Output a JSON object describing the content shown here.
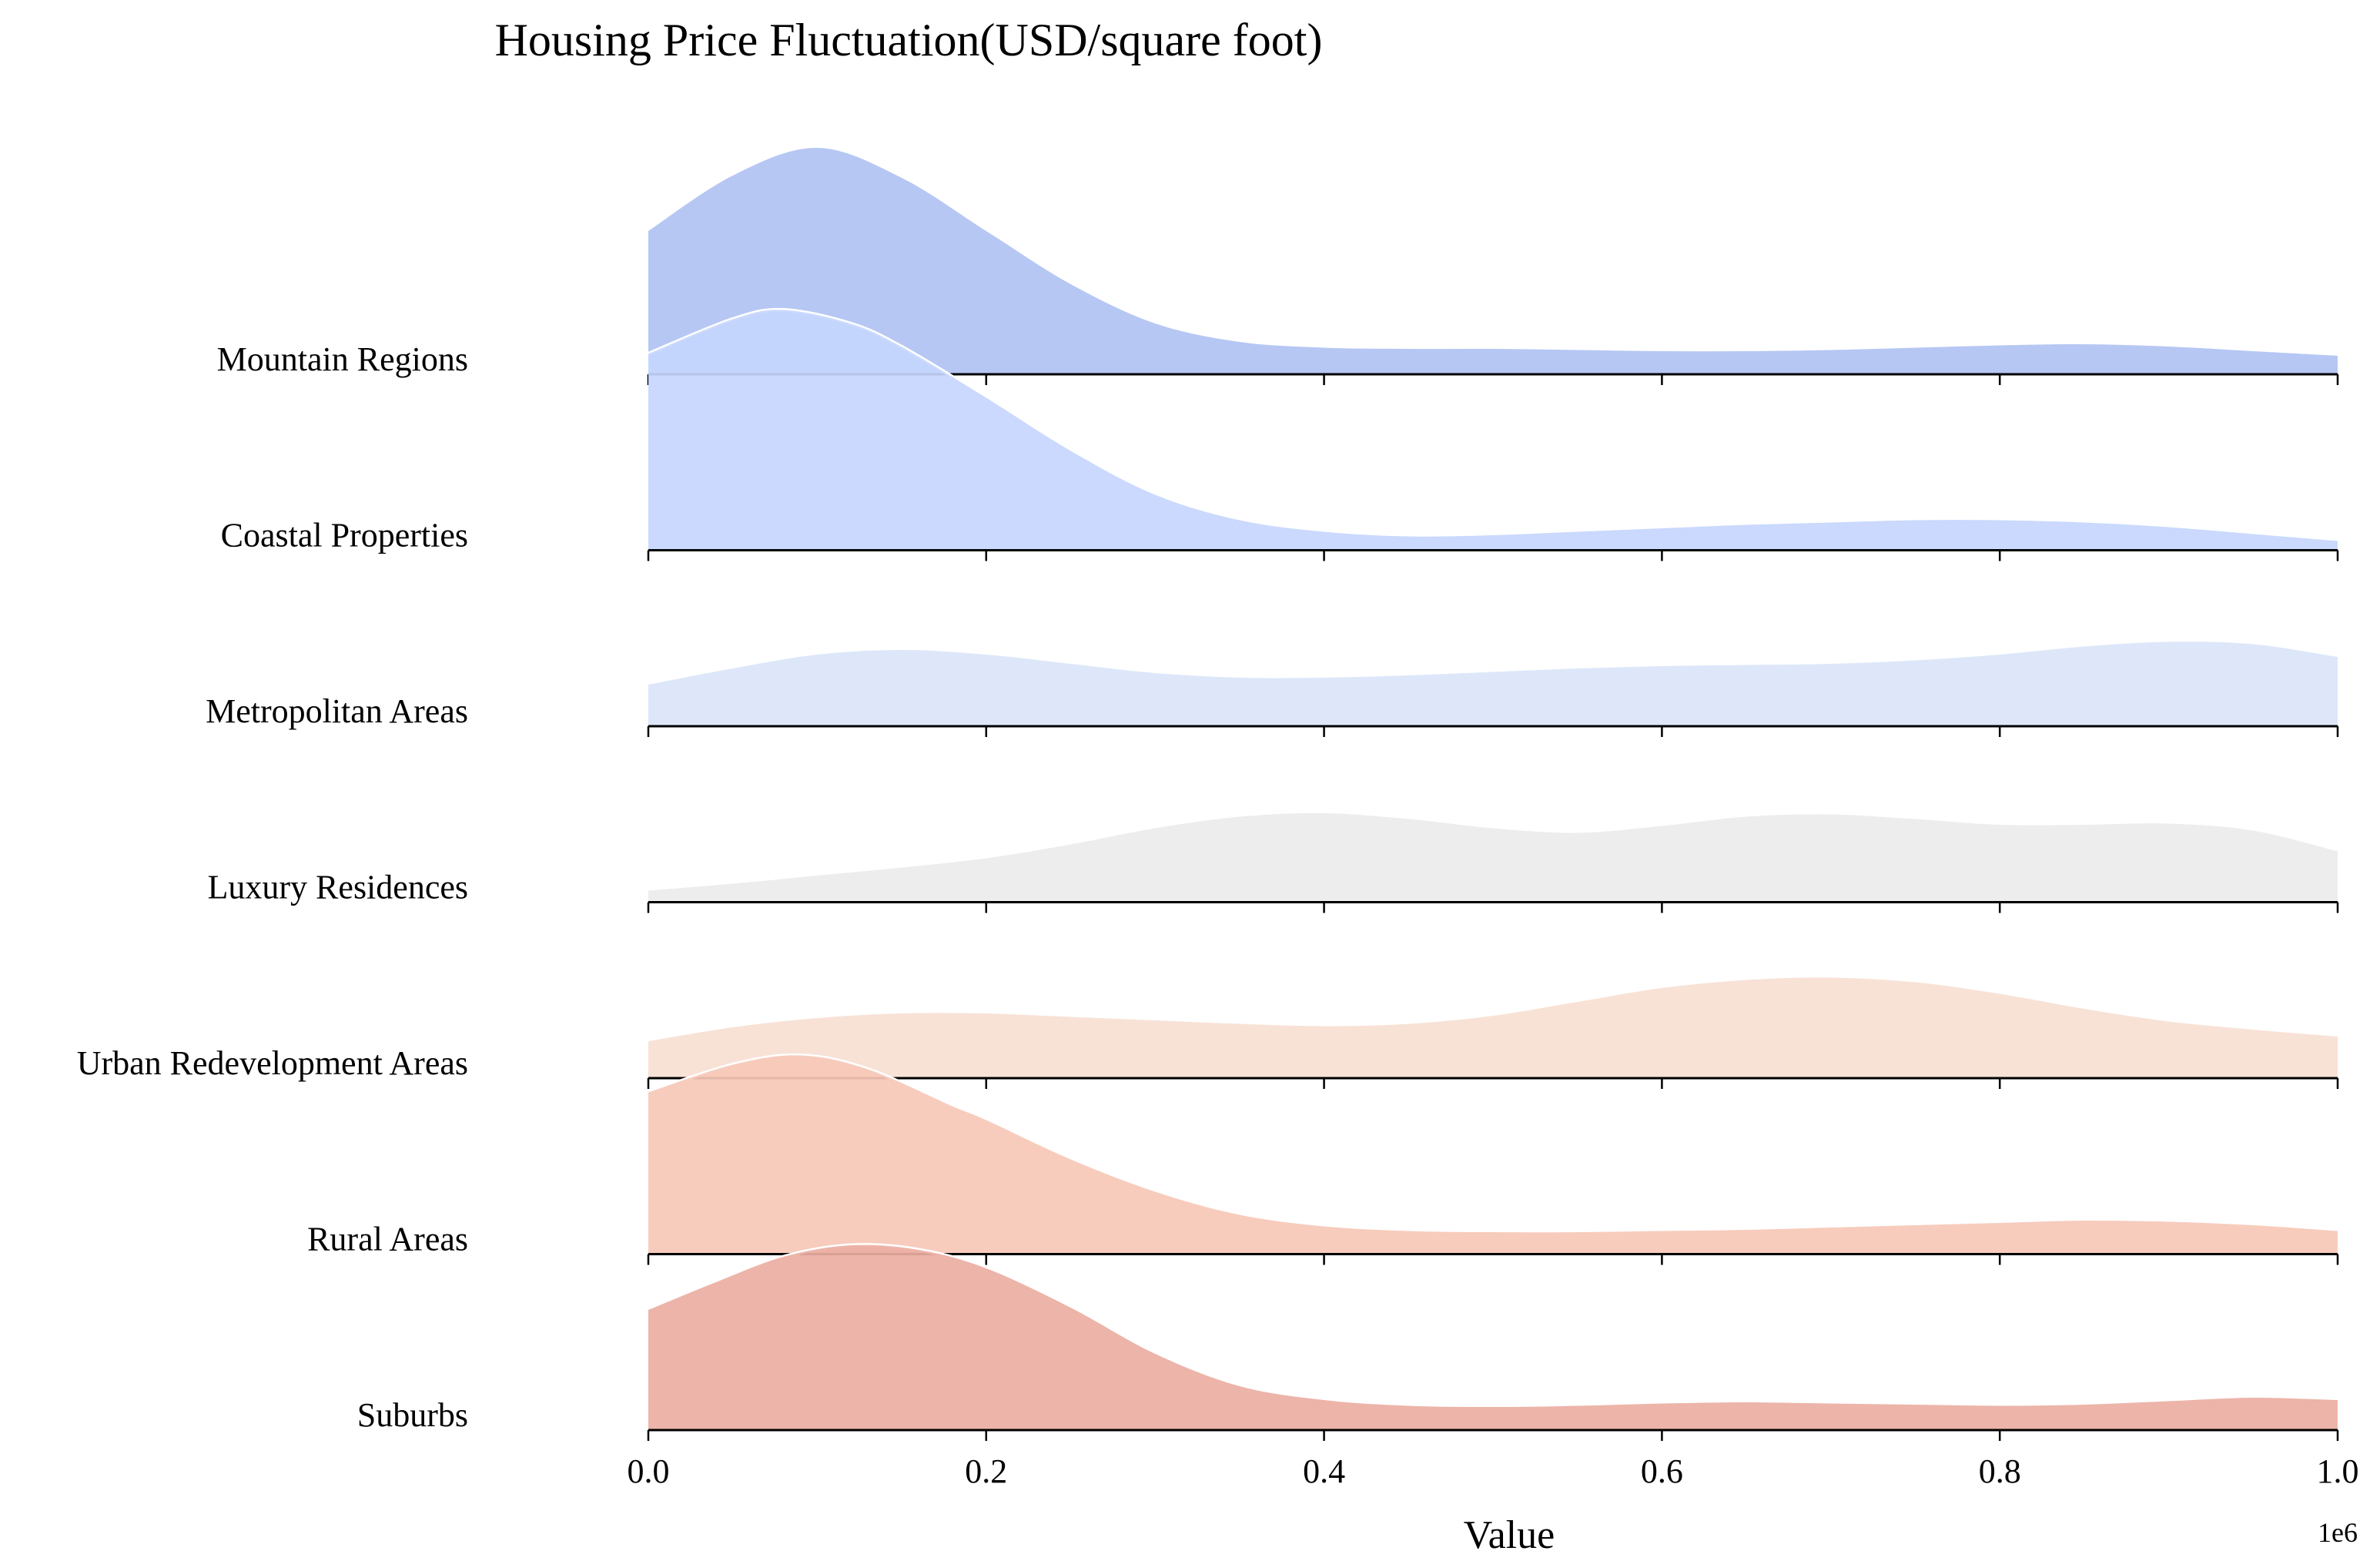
{
  "chart_data": {
    "type": "ridgeline",
    "title": "Housing Price Fluctuation(USD/square foot)",
    "xlabel": "Value",
    "x_offset_label": "1e6",
    "xlim": [
      0,
      1
    ],
    "xticks": [
      0.0,
      0.2,
      0.4,
      0.6,
      0.8,
      1.0
    ],
    "xtick_labels": [
      "0.0",
      "0.2",
      "0.4",
      "0.6",
      "0.8",
      "1.0"
    ],
    "series": [
      {
        "name": "Mountain Regions",
        "color": "#b0c2f3",
        "points": [
          [
            0,
            0.62
          ],
          [
            0.05,
            0.86
          ],
          [
            0.1,
            0.98
          ],
          [
            0.15,
            0.85
          ],
          [
            0.2,
            0.62
          ],
          [
            0.25,
            0.39
          ],
          [
            0.3,
            0.22
          ],
          [
            0.35,
            0.14
          ],
          [
            0.4,
            0.115
          ],
          [
            0.45,
            0.11
          ],
          [
            0.5,
            0.11
          ],
          [
            0.55,
            0.105
          ],
          [
            0.6,
            0.1
          ],
          [
            0.65,
            0.1
          ],
          [
            0.7,
            0.105
          ],
          [
            0.75,
            0.115
          ],
          [
            0.8,
            0.125
          ],
          [
            0.85,
            0.13
          ],
          [
            0.9,
            0.12
          ],
          [
            0.95,
            0.1
          ],
          [
            1.0,
            0.08
          ]
        ]
      },
      {
        "name": "Coastal Properties",
        "color": "#c5d6fd",
        "points": [
          [
            0,
            0.85
          ],
          [
            0.05,
            1.0
          ],
          [
            0.08,
            1.04
          ],
          [
            0.12,
            0.98
          ],
          [
            0.15,
            0.88
          ],
          [
            0.2,
            0.66
          ],
          [
            0.25,
            0.43
          ],
          [
            0.3,
            0.24
          ],
          [
            0.35,
            0.13
          ],
          [
            0.4,
            0.08
          ],
          [
            0.45,
            0.06
          ],
          [
            0.5,
            0.065
          ],
          [
            0.55,
            0.08
          ],
          [
            0.6,
            0.095
          ],
          [
            0.65,
            0.11
          ],
          [
            0.7,
            0.12
          ],
          [
            0.75,
            0.13
          ],
          [
            0.8,
            0.13
          ],
          [
            0.85,
            0.12
          ],
          [
            0.9,
            0.1
          ],
          [
            0.95,
            0.07
          ],
          [
            1.0,
            0.04
          ]
        ]
      },
      {
        "name": "Metropolitan Areas",
        "color": "#dae5f8",
        "points": [
          [
            0,
            0.18
          ],
          [
            0.05,
            0.25
          ],
          [
            0.1,
            0.31
          ],
          [
            0.15,
            0.33
          ],
          [
            0.2,
            0.31
          ],
          [
            0.25,
            0.27
          ],
          [
            0.3,
            0.23
          ],
          [
            0.35,
            0.21
          ],
          [
            0.4,
            0.21
          ],
          [
            0.45,
            0.22
          ],
          [
            0.5,
            0.235
          ],
          [
            0.55,
            0.25
          ],
          [
            0.6,
            0.26
          ],
          [
            0.65,
            0.265
          ],
          [
            0.7,
            0.27
          ],
          [
            0.75,
            0.285
          ],
          [
            0.8,
            0.31
          ],
          [
            0.85,
            0.345
          ],
          [
            0.9,
            0.365
          ],
          [
            0.95,
            0.355
          ],
          [
            1.0,
            0.3
          ]
        ]
      },
      {
        "name": "Luxury Residences",
        "color": "#ebebeb",
        "points": [
          [
            0,
            0.05
          ],
          [
            0.05,
            0.08
          ],
          [
            0.1,
            0.115
          ],
          [
            0.15,
            0.15
          ],
          [
            0.2,
            0.19
          ],
          [
            0.25,
            0.25
          ],
          [
            0.3,
            0.32
          ],
          [
            0.35,
            0.37
          ],
          [
            0.4,
            0.385
          ],
          [
            0.45,
            0.36
          ],
          [
            0.5,
            0.32
          ],
          [
            0.55,
            0.3
          ],
          [
            0.6,
            0.33
          ],
          [
            0.65,
            0.37
          ],
          [
            0.7,
            0.38
          ],
          [
            0.75,
            0.36
          ],
          [
            0.8,
            0.335
          ],
          [
            0.85,
            0.335
          ],
          [
            0.9,
            0.34
          ],
          [
            0.95,
            0.31
          ],
          [
            1.0,
            0.22
          ]
        ]
      },
      {
        "name": "Urban Redevelopment Areas",
        "color": "#f7dfd2",
        "points": [
          [
            0,
            0.16
          ],
          [
            0.05,
            0.22
          ],
          [
            0.1,
            0.26
          ],
          [
            0.15,
            0.28
          ],
          [
            0.2,
            0.28
          ],
          [
            0.25,
            0.265
          ],
          [
            0.3,
            0.25
          ],
          [
            0.35,
            0.235
          ],
          [
            0.4,
            0.225
          ],
          [
            0.45,
            0.235
          ],
          [
            0.5,
            0.27
          ],
          [
            0.55,
            0.33
          ],
          [
            0.6,
            0.39
          ],
          [
            0.65,
            0.425
          ],
          [
            0.7,
            0.435
          ],
          [
            0.75,
            0.415
          ],
          [
            0.8,
            0.365
          ],
          [
            0.85,
            0.3
          ],
          [
            0.9,
            0.245
          ],
          [
            0.95,
            0.21
          ],
          [
            1.0,
            0.18
          ]
        ]
      },
      {
        "name": "Rural Areas",
        "color": "#f6c8b7",
        "points": [
          [
            0,
            0.7
          ],
          [
            0.05,
            0.82
          ],
          [
            0.09,
            0.86
          ],
          [
            0.13,
            0.8
          ],
          [
            0.18,
            0.64
          ],
          [
            0.2,
            0.58
          ],
          [
            0.25,
            0.41
          ],
          [
            0.3,
            0.27
          ],
          [
            0.35,
            0.17
          ],
          [
            0.4,
            0.12
          ],
          [
            0.45,
            0.1
          ],
          [
            0.5,
            0.095
          ],
          [
            0.55,
            0.095
          ],
          [
            0.6,
            0.1
          ],
          [
            0.65,
            0.105
          ],
          [
            0.7,
            0.115
          ],
          [
            0.75,
            0.125
          ],
          [
            0.8,
            0.135
          ],
          [
            0.85,
            0.145
          ],
          [
            0.9,
            0.14
          ],
          [
            0.95,
            0.125
          ],
          [
            1.0,
            0.1
          ]
        ]
      },
      {
        "name": "Suburbs",
        "color": "#ebaea2",
        "points": [
          [
            0,
            0.52
          ],
          [
            0.04,
            0.64
          ],
          [
            0.08,
            0.75
          ],
          [
            0.12,
            0.8
          ],
          [
            0.16,
            0.78
          ],
          [
            0.2,
            0.7
          ],
          [
            0.25,
            0.53
          ],
          [
            0.3,
            0.33
          ],
          [
            0.35,
            0.19
          ],
          [
            0.4,
            0.13
          ],
          [
            0.45,
            0.105
          ],
          [
            0.5,
            0.1
          ],
          [
            0.55,
            0.105
          ],
          [
            0.6,
            0.115
          ],
          [
            0.65,
            0.12
          ],
          [
            0.7,
            0.115
          ],
          [
            0.75,
            0.11
          ],
          [
            0.8,
            0.105
          ],
          [
            0.85,
            0.11
          ],
          [
            0.9,
            0.125
          ],
          [
            0.95,
            0.14
          ],
          [
            1.0,
            0.13
          ]
        ]
      }
    ]
  }
}
